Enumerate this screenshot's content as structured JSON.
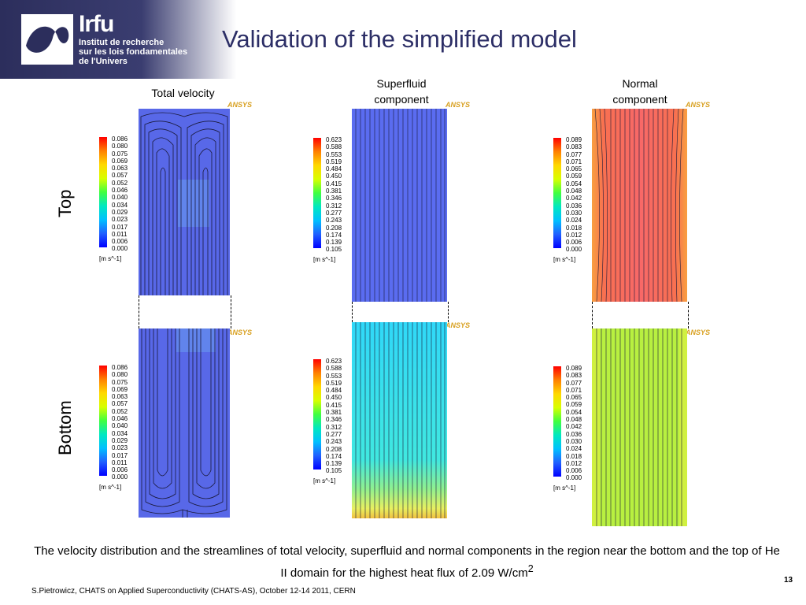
{
  "logo": {
    "brand": "Irfu",
    "line1": "Institut de recherche",
    "line2": "sur les lois fondamentales",
    "line3": "de l'Univers"
  },
  "title": "Validation of the simplified model",
  "columns": {
    "total": "Total velocity",
    "superfluid_1": "Superfluid",
    "superfluid_2": "component",
    "normal_1": "Normal",
    "normal_2": "component"
  },
  "rows": {
    "top": "Top",
    "bottom": "Bottom"
  },
  "ansys": "ANSYS",
  "legend_total": [
    "0.086",
    "0.080",
    "0.075",
    "0.069",
    "0.063",
    "0.057",
    "0.052",
    "0.046",
    "0.040",
    "0.034",
    "0.029",
    "0.023",
    "0.017",
    "0.011",
    "0.006",
    "0.000"
  ],
  "legend_super": [
    "0.623",
    "0.588",
    "0.553",
    "0.519",
    "0.484",
    "0.450",
    "0.415",
    "0.381",
    "0.346",
    "0.312",
    "0.277",
    "0.243",
    "0.208",
    "0.174",
    "0.139",
    "0.105"
  ],
  "legend_normal": [
    "0.089",
    "0.083",
    "0.077",
    "0.071",
    "0.065",
    "0.059",
    "0.054",
    "0.048",
    "0.042",
    "0.036",
    "0.030",
    "0.024",
    "0.018",
    "0.012",
    "0.006",
    "0.000"
  ],
  "unit": "[m s^-1]",
  "caption_main": "The velocity distribution and the streamlines of total velocity, superfluid and normal components in the region near the bottom and the top of He II domain for the highest heat flux of 2.09 W/cm",
  "caption_sup": "2",
  "footer": "S.Pietrowicz, CHATS on Applied Superconductivity (CHATS-AS), October 12-14 2011, CERN",
  "page": "13"
}
